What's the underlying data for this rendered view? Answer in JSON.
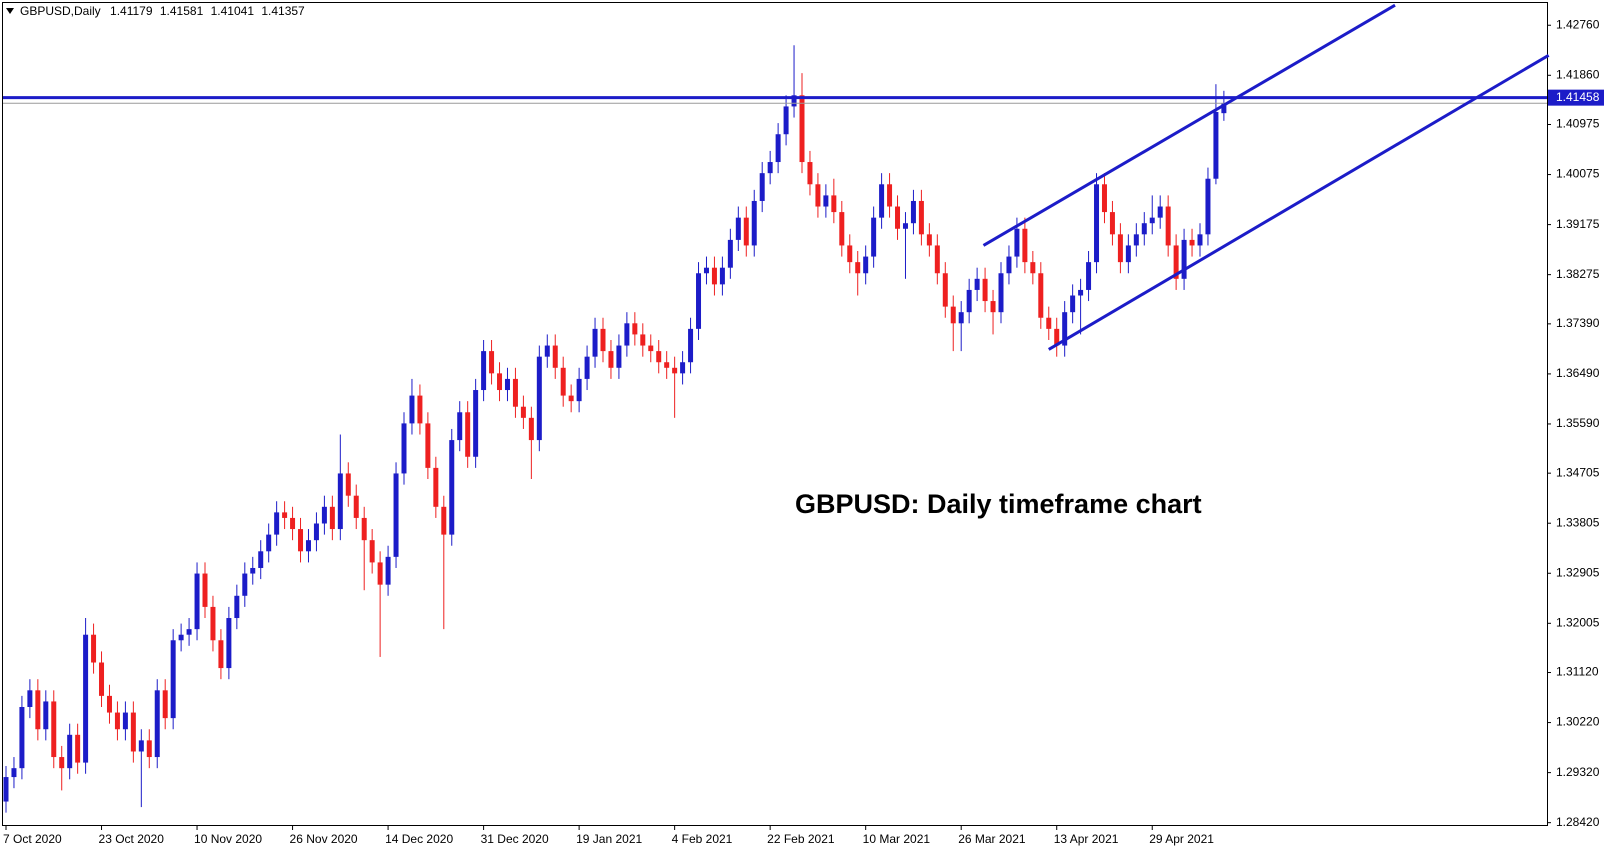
{
  "chart_data": {
    "type": "candlestick",
    "title": "GBPUSD,Daily",
    "annotation": "GBPUSD: Daily timeframe chart",
    "categories": [
      "7 Oct 2020",
      null,
      null,
      null,
      null,
      null,
      null,
      null,
      null,
      null,
      null,
      null,
      "23 Oct 2020",
      null,
      null,
      null,
      null,
      null,
      null,
      null,
      null,
      null,
      null,
      null,
      "10 Nov 2020",
      null,
      null,
      null,
      null,
      null,
      null,
      null,
      null,
      null,
      null,
      null,
      "26 Nov 2020",
      null,
      null,
      null,
      null,
      null,
      null,
      null,
      null,
      null,
      null,
      null,
      "14 Dec 2020",
      null,
      null,
      null,
      null,
      null,
      null,
      null,
      null,
      null,
      null,
      null,
      "31 Dec 2020",
      null,
      null,
      null,
      null,
      null,
      null,
      null,
      null,
      null,
      null,
      null,
      "19 Jan 2021",
      null,
      null,
      null,
      null,
      null,
      null,
      null,
      null,
      null,
      null,
      null,
      "4 Feb 2021",
      null,
      null,
      null,
      null,
      null,
      null,
      null,
      null,
      null,
      null,
      null,
      "22 Feb 2021",
      null,
      null,
      null,
      null,
      null,
      null,
      null,
      null,
      null,
      null,
      null,
      "10 Mar 2021",
      null,
      null,
      null,
      null,
      null,
      null,
      null,
      null,
      null,
      null,
      null,
      "26 Mar 2021",
      null,
      null,
      null,
      null,
      null,
      null,
      null,
      null,
      null,
      null,
      null,
      "13 Apr 2021",
      null,
      null,
      null,
      null,
      null,
      null,
      null,
      null,
      null,
      null,
      null,
      "29 Apr 2021",
      null,
      null,
      null,
      null,
      null,
      null,
      null,
      null,
      null
    ],
    "open": [
      1.288,
      1.2924,
      1.294,
      1.305,
      1.308,
      1.301,
      1.306,
      1.296,
      1.294,
      1.3,
      1.295,
      1.318,
      1.313,
      1.307,
      1.304,
      1.301,
      1.304,
      1.297,
      1.299,
      1.296,
      1.308,
      1.303,
      1.317,
      1.318,
      1.319,
      1.329,
      1.323,
      1.317,
      1.312,
      1.321,
      1.325,
      1.329,
      1.33,
      1.333,
      1.336,
      1.34,
      1.339,
      1.337,
      1.333,
      1.335,
      1.338,
      1.341,
      1.337,
      1.347,
      1.343,
      1.339,
      1.335,
      1.331,
      1.327,
      1.332,
      1.347,
      1.356,
      1.361,
      1.356,
      1.348,
      1.341,
      1.336,
      1.353,
      1.358,
      1.35,
      1.362,
      1.369,
      1.365,
      1.362,
      1.364,
      1.359,
      1.357,
      1.353,
      1.368,
      1.37,
      1.366,
      1.361,
      1.36,
      1.364,
      1.368,
      1.373,
      1.369,
      1.366,
      1.37,
      1.374,
      1.372,
      1.37,
      1.369,
      1.367,
      1.366,
      1.365,
      1.367,
      1.373,
      1.383,
      1.384,
      1.381,
      1.384,
      1.389,
      1.393,
      1.388,
      1.396,
      1.401,
      1.403,
      1.408,
      1.413,
      1.415,
      1.403,
      1.399,
      1.395,
      1.397,
      1.394,
      1.388,
      1.385,
      1.383,
      1.386,
      1.393,
      1.399,
      1.395,
      1.391,
      1.392,
      1.396,
      1.39,
      1.388,
      1.383,
      1.377,
      1.374,
      1.376,
      1.38,
      1.382,
      1.378,
      1.376,
      1.383,
      1.386,
      1.391,
      1.385,
      1.383,
      1.375,
      1.373,
      1.37,
      1.376,
      1.379,
      1.38,
      1.385,
      1.399,
      1.394,
      1.39,
      1.385,
      1.388,
      1.39,
      1.392,
      1.393,
      1.395,
      1.388,
      1.382,
      1.389,
      1.388,
      1.39,
      1.4,
      1.41179
    ],
    "high": [
      1.2944,
      1.296,
      1.307,
      1.31,
      1.31,
      1.308,
      1.308,
      1.298,
      1.302,
      1.302,
      1.321,
      1.32,
      1.315,
      1.309,
      1.306,
      1.306,
      1.306,
      1.301,
      1.301,
      1.31,
      1.31,
      1.319,
      1.32,
      1.321,
      1.331,
      1.331,
      1.325,
      1.319,
      1.323,
      1.327,
      1.331,
      1.332,
      1.335,
      1.338,
      1.342,
      1.342,
      1.341,
      1.339,
      1.337,
      1.34,
      1.343,
      1.343,
      1.354,
      1.349,
      1.345,
      1.341,
      1.337,
      1.333,
      1.334,
      1.349,
      1.358,
      1.364,
      1.363,
      1.358,
      1.35,
      1.343,
      1.355,
      1.36,
      1.36,
      1.364,
      1.371,
      1.371,
      1.367,
      1.366,
      1.366,
      1.361,
      1.359,
      1.37,
      1.372,
      1.372,
      1.368,
      1.363,
      1.366,
      1.37,
      1.375,
      1.375,
      1.371,
      1.372,
      1.376,
      1.376,
      1.374,
      1.372,
      1.371,
      1.369,
      1.368,
      1.369,
      1.375,
      1.385,
      1.386,
      1.386,
      1.386,
      1.391,
      1.395,
      1.395,
      1.398,
      1.403,
      1.405,
      1.41,
      1.415,
      1.424,
      1.419,
      1.405,
      1.401,
      1.399,
      1.4,
      1.396,
      1.39,
      1.387,
      1.388,
      1.395,
      1.401,
      1.401,
      1.397,
      1.394,
      1.398,
      1.398,
      1.392,
      1.39,
      1.385,
      1.379,
      1.378,
      1.382,
      1.384,
      1.384,
      1.38,
      1.385,
      1.388,
      1.393,
      1.393,
      1.387,
      1.385,
      1.377,
      1.375,
      1.378,
      1.381,
      1.382,
      1.387,
      1.401,
      1.401,
      1.396,
      1.392,
      1.39,
      1.392,
      1.394,
      1.397,
      1.397,
      1.397,
      1.39,
      1.391,
      1.391,
      1.392,
      1.402,
      1.417,
      1.41581
    ],
    "low": [
      1.286,
      1.2904,
      1.292,
      1.303,
      1.299,
      1.299,
      1.294,
      1.29,
      1.292,
      1.293,
      1.293,
      1.311,
      1.305,
      1.302,
      1.299,
      1.299,
      1.295,
      1.287,
      1.294,
      1.294,
      1.301,
      1.301,
      1.315,
      1.316,
      1.317,
      1.321,
      1.315,
      1.31,
      1.31,
      1.319,
      1.323,
      1.327,
      1.328,
      1.331,
      1.334,
      1.337,
      1.335,
      1.331,
      1.331,
      1.333,
      1.336,
      1.335,
      1.335,
      1.341,
      1.337,
      1.326,
      1.329,
      1.314,
      1.325,
      1.33,
      1.345,
      1.354,
      1.354,
      1.346,
      1.339,
      1.319,
      1.334,
      1.351,
      1.348,
      1.348,
      1.36,
      1.363,
      1.36,
      1.36,
      1.357,
      1.355,
      1.346,
      1.351,
      1.366,
      1.364,
      1.359,
      1.358,
      1.358,
      1.362,
      1.366,
      1.367,
      1.364,
      1.364,
      1.368,
      1.37,
      1.368,
      1.367,
      1.365,
      1.364,
      1.357,
      1.363,
      1.365,
      1.371,
      1.381,
      1.379,
      1.379,
      1.382,
      1.387,
      1.386,
      1.386,
      1.394,
      1.399,
      1.401,
      1.406,
      1.411,
      1.401,
      1.397,
      1.393,
      1.393,
      1.392,
      1.386,
      1.383,
      1.379,
      1.381,
      1.384,
      1.391,
      1.393,
      1.389,
      1.382,
      1.39,
      1.388,
      1.386,
      1.381,
      1.375,
      1.369,
      1.369,
      1.374,
      1.378,
      1.376,
      1.372,
      1.374,
      1.381,
      1.384,
      1.383,
      1.381,
      1.373,
      1.371,
      1.368,
      1.368,
      1.374,
      1.372,
      1.378,
      1.383,
      1.392,
      1.388,
      1.383,
      1.383,
      1.386,
      1.388,
      1.39,
      1.391,
      1.386,
      1.38,
      1.38,
      1.386,
      1.386,
      1.388,
      1.399,
      1.41041
    ],
    "close": [
      1.2924,
      1.294,
      1.305,
      1.308,
      1.301,
      1.306,
      1.296,
      1.294,
      1.3,
      1.295,
      1.318,
      1.313,
      1.307,
      1.304,
      1.301,
      1.304,
      1.297,
      1.299,
      1.296,
      1.308,
      1.303,
      1.317,
      1.318,
      1.319,
      1.329,
      1.323,
      1.317,
      1.312,
      1.321,
      1.325,
      1.329,
      1.33,
      1.333,
      1.336,
      1.34,
      1.339,
      1.337,
      1.333,
      1.335,
      1.338,
      1.341,
      1.337,
      1.347,
      1.343,
      1.339,
      1.335,
      1.331,
      1.327,
      1.332,
      1.347,
      1.356,
      1.361,
      1.356,
      1.348,
      1.341,
      1.336,
      1.353,
      1.358,
      1.35,
      1.362,
      1.369,
      1.365,
      1.362,
      1.364,
      1.359,
      1.357,
      1.353,
      1.368,
      1.37,
      1.366,
      1.361,
      1.36,
      1.364,
      1.368,
      1.373,
      1.369,
      1.366,
      1.37,
      1.374,
      1.372,
      1.37,
      1.369,
      1.367,
      1.366,
      1.365,
      1.367,
      1.373,
      1.383,
      1.384,
      1.381,
      1.384,
      1.389,
      1.393,
      1.388,
      1.396,
      1.401,
      1.403,
      1.408,
      1.413,
      1.415,
      1.403,
      1.399,
      1.395,
      1.397,
      1.394,
      1.388,
      1.385,
      1.383,
      1.386,
      1.393,
      1.399,
      1.395,
      1.391,
      1.392,
      1.396,
      1.39,
      1.388,
      1.383,
      1.377,
      1.374,
      1.376,
      1.38,
      1.382,
      1.378,
      1.376,
      1.383,
      1.386,
      1.391,
      1.385,
      1.383,
      1.375,
      1.373,
      1.37,
      1.376,
      1.379,
      1.38,
      1.385,
      1.399,
      1.394,
      1.39,
      1.385,
      1.388,
      1.39,
      1.392,
      1.393,
      1.395,
      1.388,
      1.382,
      1.389,
      1.388,
      1.39,
      1.4,
      1.412,
      1.41357
    ],
    "bull_color": "#1c1cc8",
    "bear_color": "#ee2020",
    "ylim": [
      1.2836,
      1.4316
    ],
    "yticks": [
      {
        "value": 1.4276,
        "label": "1.42760"
      },
      {
        "value": 1.4186,
        "label": "1.41860"
      },
      1.40975,
      1.40075,
      1.39175,
      1.38275,
      {
        "value": 1.3739,
        "label": "1.37390"
      },
      {
        "value": 1.3649,
        "label": "1.36490"
      },
      {
        "value": 1.3559,
        "label": "1.35590"
      },
      1.34705,
      1.33805,
      1.32905,
      1.32005,
      {
        "value": 1.3112,
        "label": "1.31120"
      },
      {
        "value": 1.3022,
        "label": "1.30220"
      },
      {
        "value": 1.2932,
        "label": "1.29320"
      },
      {
        "value": 1.2842,
        "label": "1.28420"
      }
    ],
    "hline": {
      "value": 1.41458,
      "color": "#1c1cc8"
    },
    "trendlines": [
      {
        "x": [
          122.8,
          174.5
        ],
        "y": [
          1.388,
          1.4312
        ]
      },
      {
        "x": [
          131,
          193.8
        ],
        "y": [
          1.3693,
          1.4222
        ]
      }
    ],
    "trendline_color": "#1c1cc8"
  }
}
